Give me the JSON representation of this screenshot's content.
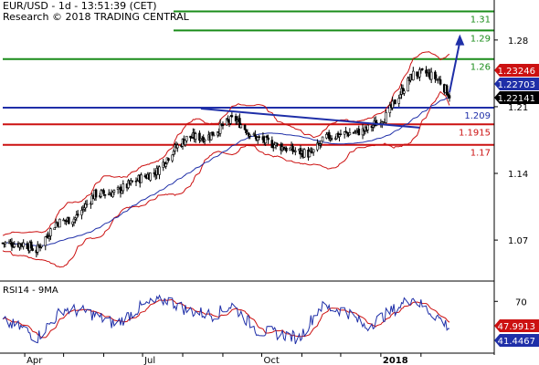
{
  "header": {
    "instrument_line": "EUR/USD - 1d - 13:51:39 (CET)",
    "research_line": "Research © 2018 TRADING CENTRAL"
  },
  "colors": {
    "resistance": "#1a8c1a",
    "support": "#cc1111",
    "pivot": "#1f2fa8",
    "candle": "#000000",
    "band": "#cc1111",
    "ma": "#1f2fa8",
    "rsi": "#1f2fa8",
    "rsi_ma": "#cc1111",
    "price_tag_red": "#cc1111",
    "price_tag_blue": "#1f2fa8",
    "price_tag_black": "#000000"
  },
  "chart_data": [
    {
      "type": "candlestick",
      "title": "EUR/USD - 1d - 13:51:39 (CET)",
      "price_axis": {
        "ticks": [
          "1.28",
          "1.21",
          "1.14",
          "1.07"
        ],
        "tick_values": [
          1.28,
          1.21,
          1.14,
          1.07
        ],
        "range": [
          1.027,
          1.322
        ]
      },
      "time_axis": {
        "labels": [
          "Apr",
          "Jul",
          "Oct",
          "2018"
        ],
        "months": [
          "2017-03",
          "2017-04",
          "2017-05",
          "2017-06",
          "2017-07",
          "2017-08",
          "2017-09",
          "2017-10",
          "2017-11",
          "2017-12",
          "2018-01",
          "2018-02"
        ],
        "start": "2017-03-15",
        "end": "2018-02-23"
      },
      "horizontal_levels": [
        {
          "label": "1.31",
          "value": 1.31,
          "kind": "resistance"
        },
        {
          "label": "1.29",
          "value": 1.29,
          "kind": "resistance"
        },
        {
          "label": "1.26",
          "value": 1.26,
          "kind": "resistance"
        },
        {
          "label": "1.209",
          "value": 1.209,
          "kind": "pivot"
        },
        {
          "label": "1.1915",
          "value": 1.1915,
          "kind": "support"
        },
        {
          "label": "1.17",
          "value": 1.17,
          "kind": "support"
        }
      ],
      "trendline": {
        "from": [
          "2017-08-15",
          1.208
        ],
        "to": [
          "2018-01-31",
          1.188
        ]
      },
      "forecast_arrow": {
        "from": [
          "2018-02-23",
          1.225
        ],
        "to": [
          "2018-03-03",
          1.286
        ]
      },
      "price_tags": [
        {
          "label": "1.23246",
          "value": 1.2325,
          "style": "red"
        },
        {
          "label": "1.22703",
          "value": 1.227,
          "style": "blue"
        },
        {
          "label": "1.22141",
          "value": 1.2214,
          "style": "black"
        }
      ],
      "price_path": [
        [
          "2017-03-15",
          1.067
        ],
        [
          "2017-04-01",
          1.066
        ],
        [
          "2017-04-10",
          1.059
        ],
        [
          "2017-04-25",
          1.088
        ],
        [
          "2017-05-10",
          1.093
        ],
        [
          "2017-05-25",
          1.118
        ],
        [
          "2017-06-10",
          1.12
        ],
        [
          "2017-06-28",
          1.134
        ],
        [
          "2017-07-12",
          1.142
        ],
        [
          "2017-07-25",
          1.165
        ],
        [
          "2017-08-05",
          1.178
        ],
        [
          "2017-08-20",
          1.178
        ],
        [
          "2017-09-01",
          1.19
        ],
        [
          "2017-09-10",
          1.198
        ],
        [
          "2017-09-25",
          1.178
        ],
        [
          "2017-10-05",
          1.173
        ],
        [
          "2017-10-25",
          1.164
        ],
        [
          "2017-11-08",
          1.16
        ],
        [
          "2017-11-20",
          1.178
        ],
        [
          "2017-12-05",
          1.182
        ],
        [
          "2017-12-20",
          1.185
        ],
        [
          "2018-01-05",
          1.2
        ],
        [
          "2018-01-15",
          1.222
        ],
        [
          "2018-01-26",
          1.244
        ],
        [
          "2018-02-05",
          1.245
        ],
        [
          "2018-02-15",
          1.238
        ],
        [
          "2018-02-23",
          1.222
        ]
      ]
    },
    {
      "type": "line",
      "title": "RSI14 - 9MA",
      "y_axis": {
        "ticks": [
          "70"
        ],
        "tick_values": [
          70
        ],
        "range": [
          15,
          90
        ]
      },
      "series_names": [
        "RSI14",
        "9MA"
      ],
      "last_values": [
        {
          "label": "47.9913",
          "value": 47.99,
          "series": "9MA"
        },
        {
          "label": "41.4467",
          "value": 41.45,
          "series": "RSI14"
        }
      ],
      "rsi_path": [
        [
          "2017-03-15",
          48
        ],
        [
          "2017-04-01",
          40
        ],
        [
          "2017-04-10",
          30
        ],
        [
          "2017-05-01",
          62
        ],
        [
          "2017-05-20",
          58
        ],
        [
          "2017-06-10",
          45
        ],
        [
          "2017-07-01",
          65
        ],
        [
          "2017-07-20",
          72
        ],
        [
          "2017-08-05",
          60
        ],
        [
          "2017-08-25",
          55
        ],
        [
          "2017-09-08",
          66
        ],
        [
          "2017-09-28",
          38
        ],
        [
          "2017-10-15",
          35
        ],
        [
          "2017-10-30",
          30
        ],
        [
          "2017-11-15",
          64
        ],
        [
          "2017-12-05",
          60
        ],
        [
          "2017-12-20",
          42
        ],
        [
          "2018-01-10",
          60
        ],
        [
          "2018-01-25",
          74
        ],
        [
          "2018-02-05",
          62
        ],
        [
          "2018-02-15",
          52
        ],
        [
          "2018-02-23",
          41.45
        ]
      ]
    }
  ]
}
